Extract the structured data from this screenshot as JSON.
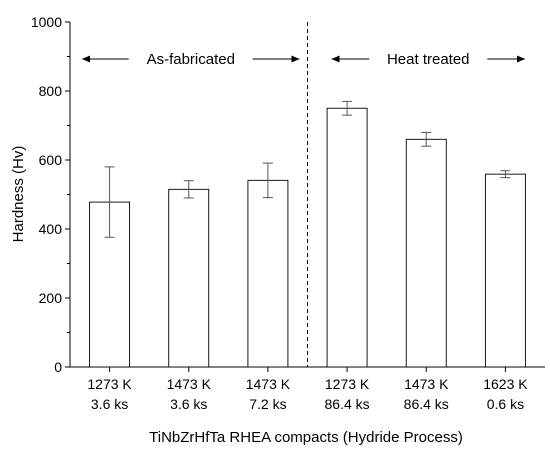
{
  "chart_data": {
    "type": "bar",
    "xlabel": "TiNbZrHfTa RHEA compacts (Hydride Process)",
    "ylabel": "Hardness (Hv)",
    "ylim": [
      0,
      1000
    ],
    "yticks": [
      0,
      200,
      400,
      600,
      800,
      1000
    ],
    "grid": false,
    "categories": [
      [
        "1273 K",
        "3.6 ks"
      ],
      [
        "1473 K",
        "3.6 ks"
      ],
      [
        "1473 K",
        "7.2 ks"
      ],
      [
        "1273 K",
        "86.4 ks"
      ],
      [
        "1473 K",
        "86.4 ks"
      ],
      [
        "1623 K",
        "0.6 ks"
      ]
    ],
    "series": [
      {
        "values": [
          478,
          515,
          541,
          750,
          660,
          559
        ],
        "errors": [
          102,
          25,
          50,
          20,
          20,
          10
        ]
      }
    ],
    "annotations": [
      {
        "text": "As-fabricated",
        "range": [
          "1273 K 3.6 ks",
          "1473 K 7.2 ks"
        ]
      },
      {
        "text": "Heat treated",
        "range": [
          "1273 K 86.4 ks",
          "1623 K 0.6 ks"
        ]
      }
    ],
    "divider_after_category": 3
  }
}
